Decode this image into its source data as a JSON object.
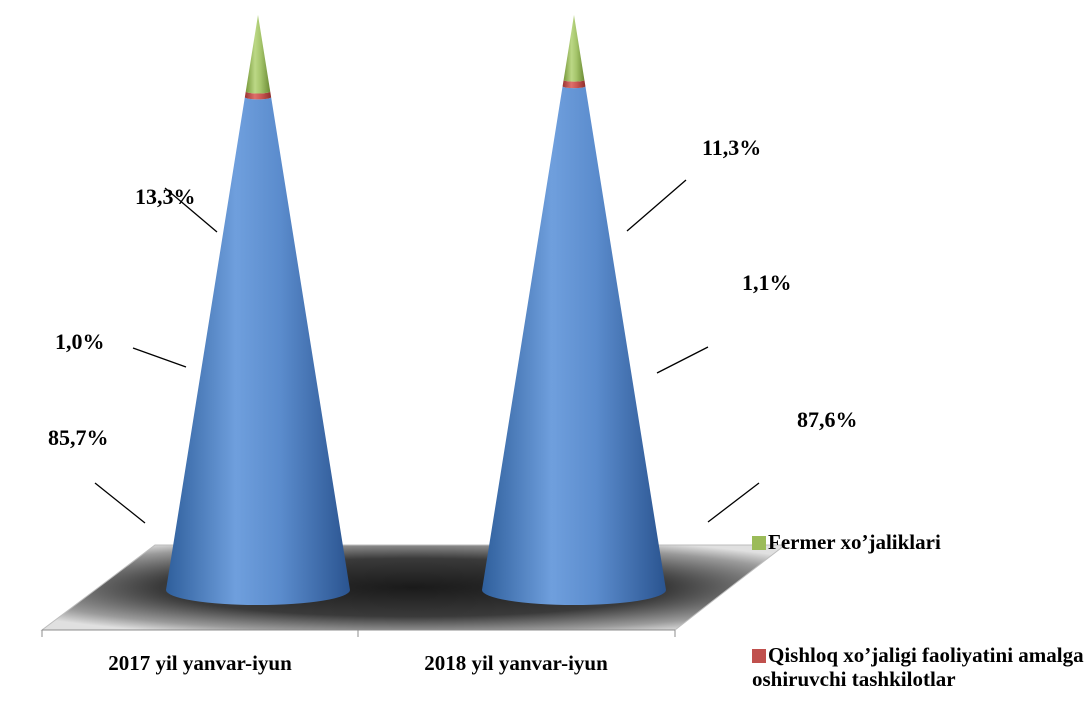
{
  "chart_data": {
    "type": "bar",
    "subtype": "stacked-100-cone-3d",
    "title": "",
    "xlabel": "",
    "ylabel": "",
    "categories": [
      "2017 yil yanvar-iyun",
      "2018 yil yanvar-iyun"
    ],
    "series": [
      {
        "name": "",
        "color": "#4f81bd",
        "values": [
          85.7,
          87.6
        ],
        "labels": [
          "85,7%",
          "87,6%"
        ]
      },
      {
        "name": "Qishloq xo’jaligi faoliyatini amalga oshiruvchi tashkilotlar",
        "color": "#c0504d",
        "values": [
          1.0,
          1.1
        ],
        "labels": [
          "1,0%",
          "1,1%"
        ]
      },
      {
        "name": "Fermer xo’jaliklari",
        "color": "#9bbb59",
        "values": [
          13.3,
          11.3
        ],
        "labels": [
          "13,3%",
          "11,3%"
        ]
      }
    ],
    "legend": {
      "position": "right",
      "items": [
        {
          "label": "Fermer xo’jaliklari",
          "color": "#9bbb59"
        },
        {
          "label": "Qishloq xo’jaligi faoliyatini amalga oshiruvchi tashkilotlar",
          "color": "#c0504d"
        }
      ]
    },
    "grid": false
  }
}
